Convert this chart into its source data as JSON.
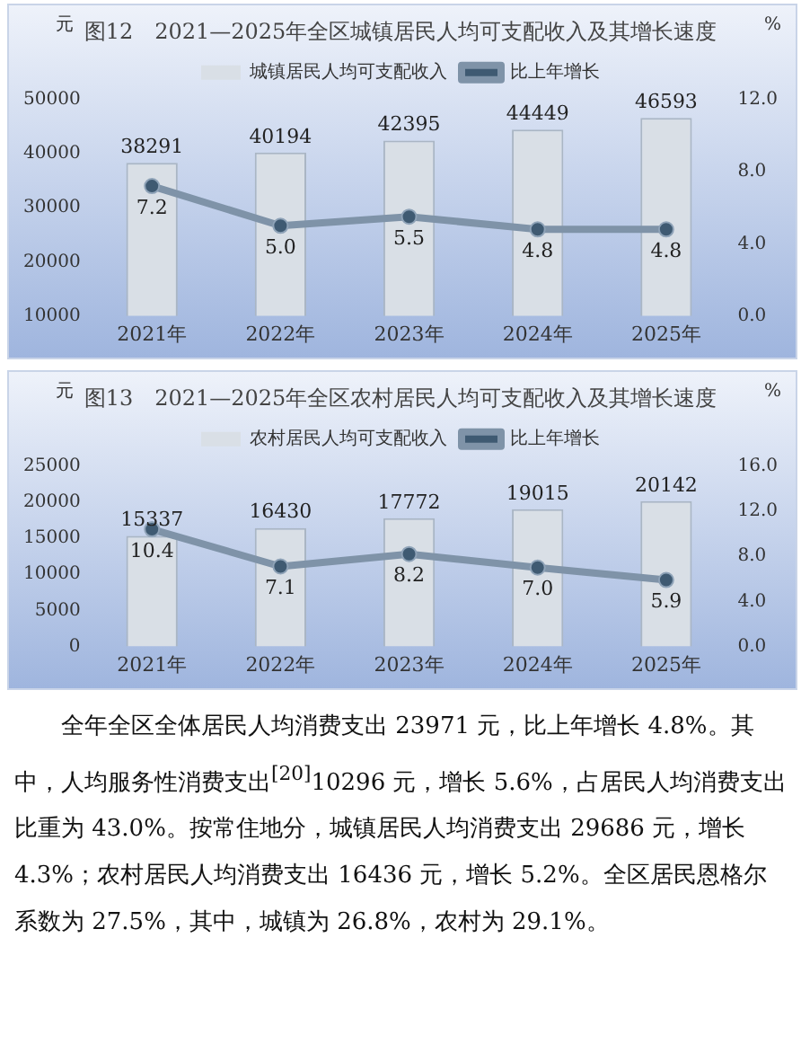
{
  "chart_data": [
    {
      "type": "bar",
      "title": "图12　2021—2025年全区城镇居民人均可支配收入及其增长速度",
      "ylabel": "元",
      "y2label": "%",
      "categories": [
        "2021年",
        "2022年",
        "2023年",
        "2024年",
        "2025年"
      ],
      "series": [
        {
          "name": "城镇居民人均可支配收入",
          "type": "bar",
          "color": "#d9dfe6",
          "values": [
            38291,
            40194,
            42395,
            44449,
            46593
          ],
          "value_labels": [
            "38291",
            "40194",
            "42395",
            "44449",
            "46593"
          ]
        },
        {
          "name": "比上年增长",
          "type": "line",
          "axis": "y2",
          "color": "#7f93a8",
          "values": [
            7.2,
            5.0,
            5.5,
            4.8,
            4.8
          ],
          "value_labels": [
            "7.2",
            "5.0",
            "5.5",
            "4.8",
            "4.8"
          ]
        }
      ],
      "ylim": [
        10000,
        50000
      ],
      "yticks": [
        10000,
        20000,
        30000,
        40000,
        50000
      ],
      "y2lim": [
        0,
        12
      ],
      "y2ticks": [
        {
          "value": 0,
          "label": "0.0"
        },
        {
          "value": 4,
          "label": "4.0"
        },
        {
          "value": 8,
          "label": "8.0"
        },
        {
          "value": 12,
          "label": "12.0"
        }
      ],
      "legend": "top",
      "grid": false,
      "marker": "circle",
      "line_style": "solid"
    },
    {
      "type": "bar",
      "title": "图13　2021—2025年全区农村居民人均可支配收入及其增长速度",
      "ylabel": "元",
      "y2label": "%",
      "categories": [
        "2021年",
        "2022年",
        "2023年",
        "2024年",
        "2025年"
      ],
      "series": [
        {
          "name": "农村居民人均可支配收入",
          "type": "bar",
          "color": "#d9dfe6",
          "values": [
            15337,
            16430,
            17772,
            19015,
            20142
          ],
          "value_labels": [
            "15337",
            "16430",
            "17772",
            "19015",
            "20142"
          ]
        },
        {
          "name": "比上年增长",
          "type": "line",
          "axis": "y2",
          "color": "#7f93a8",
          "values": [
            10.4,
            7.1,
            8.2,
            7.0,
            5.9
          ],
          "value_labels": [
            "10.4",
            "7.1",
            "8.2",
            "7.0",
            "5.9"
          ]
        }
      ],
      "ylim": [
        0,
        25000
      ],
      "yticks": [
        0,
        5000,
        10000,
        15000,
        20000,
        25000
      ],
      "y2lim": [
        0,
        16
      ],
      "y2ticks": [
        {
          "value": 0,
          "label": "0.0"
        },
        {
          "value": 4,
          "label": "4.0"
        },
        {
          "value": 8,
          "label": "8.0"
        },
        {
          "value": 12,
          "label": "12.0"
        },
        {
          "value": 16,
          "label": "16.0"
        }
      ],
      "legend": "top",
      "grid": false,
      "marker": "circle",
      "line_style": "solid"
    },
    {
      "type": "other",
      "annotations": [
        "全年全区全体居民人均消费支出 23971 元，比上年增长 4.8%。其中，人均服务性消费支出$^{[20]}$10296 元，增长 5.6%，占居民人均消费支出比重为 43.0%。按常住地分，城镇居民人均消费支出 29686 元，增长 4.3%；农村居民人均消费支出 16436 元，增长 5.2%。全区居民恩格尔系数为 27.5%，其中，城镇为 26.8%，农村为 29.1%。"
      ]
    }
  ]
}
